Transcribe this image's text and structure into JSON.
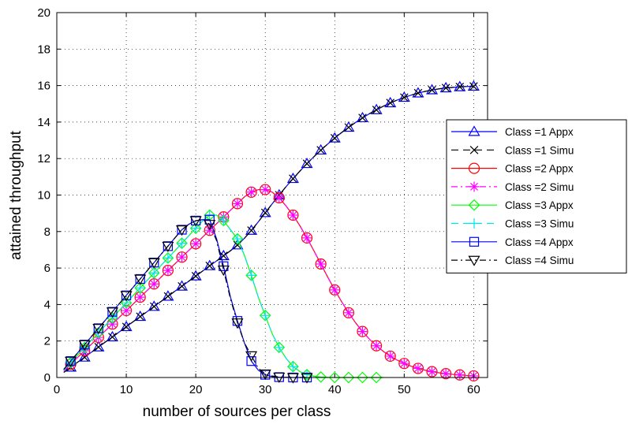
{
  "chart_data": {
    "type": "line",
    "title": "",
    "xlabel": "number of sources per class",
    "ylabel": "attained throughput",
    "xlim": [
      0,
      62
    ],
    "ylim": [
      0,
      20
    ],
    "xticks": [
      0,
      10,
      20,
      30,
      40,
      50,
      60
    ],
    "yticks": [
      0,
      2,
      4,
      6,
      8,
      10,
      12,
      14,
      16,
      18,
      20
    ],
    "grid": true,
    "grid_style": "dotted",
    "legend_position": "outside-right",
    "series": [
      {
        "name": "Class =1 Appx",
        "color": "#0000ff",
        "line": "solid",
        "marker": "triangle-up",
        "x": [
          1,
          2,
          3,
          4,
          5,
          6,
          7,
          8,
          9,
          10,
          11,
          12,
          13,
          14,
          15,
          16,
          17,
          18,
          19,
          20,
          21,
          22,
          23,
          24,
          25,
          26,
          27,
          28,
          29,
          30,
          31,
          32,
          33,
          34,
          35,
          36,
          37,
          38,
          39,
          40,
          41,
          42,
          43,
          44,
          45,
          46,
          47,
          48,
          49,
          50,
          51,
          52,
          53,
          54,
          55,
          56,
          57,
          58,
          59,
          60
        ],
        "y": [
          0.28,
          0.56,
          0.84,
          1.11,
          1.39,
          1.67,
          1.95,
          2.22,
          2.5,
          2.78,
          3.06,
          3.34,
          3.61,
          3.89,
          4.17,
          4.45,
          4.73,
          5.0,
          5.28,
          5.56,
          5.84,
          6.12,
          6.39,
          6.67,
          6.95,
          7.26,
          7.63,
          8.06,
          8.53,
          9.03,
          9.52,
          10.0,
          10.46,
          10.9,
          11.32,
          11.72,
          12.1,
          12.46,
          12.8,
          13.12,
          13.43,
          13.71,
          13.98,
          14.23,
          14.46,
          14.67,
          14.87,
          15.05,
          15.21,
          15.35,
          15.48,
          15.59,
          15.68,
          15.76,
          15.82,
          15.87,
          15.9,
          15.93,
          15.95,
          15.96
        ]
      },
      {
        "name": "Class =1 Simu",
        "color": "#000000",
        "line": "dashed",
        "marker": "x",
        "x": [
          1,
          2,
          3,
          4,
          5,
          6,
          7,
          8,
          9,
          10,
          11,
          12,
          13,
          14,
          15,
          16,
          17,
          18,
          19,
          20,
          21,
          22,
          23,
          24,
          25,
          26,
          27,
          28,
          29,
          30,
          31,
          32,
          33,
          34,
          35,
          36,
          37,
          38,
          39,
          40,
          41,
          42,
          43,
          44,
          45,
          46,
          47,
          48,
          49,
          50,
          51,
          52,
          53,
          54,
          55,
          56,
          57,
          58,
          59,
          60
        ],
        "y": [
          0.28,
          0.56,
          0.84,
          1.11,
          1.39,
          1.67,
          1.95,
          2.22,
          2.5,
          2.78,
          3.06,
          3.34,
          3.61,
          3.89,
          4.17,
          4.45,
          4.73,
          5.0,
          5.28,
          5.56,
          5.84,
          6.12,
          6.39,
          6.67,
          6.95,
          7.26,
          7.63,
          8.06,
          8.53,
          9.03,
          9.52,
          10.0,
          10.46,
          10.9,
          11.32,
          11.72,
          12.1,
          12.46,
          12.8,
          13.12,
          13.43,
          13.71,
          13.98,
          14.23,
          14.46,
          14.67,
          14.87,
          15.05,
          15.21,
          15.35,
          15.48,
          15.59,
          15.68,
          15.76,
          15.82,
          15.87,
          15.9,
          15.93,
          15.95,
          15.96
        ]
      },
      {
        "name": "Class =2 Appx",
        "color": "#ff0000",
        "line": "solid",
        "marker": "circle",
        "x": [
          1,
          2,
          3,
          4,
          5,
          6,
          7,
          8,
          9,
          10,
          11,
          12,
          13,
          14,
          15,
          16,
          17,
          18,
          19,
          20,
          21,
          22,
          23,
          24,
          25,
          26,
          27,
          28,
          29,
          30,
          31,
          32,
          33,
          34,
          35,
          36,
          37,
          38,
          39,
          40,
          41,
          42,
          43,
          44,
          45,
          46,
          47,
          48,
          49,
          50,
          51,
          52,
          53,
          54,
          55,
          56,
          57,
          58,
          59,
          60
        ],
        "y": [
          0.37,
          0.73,
          1.1,
          1.47,
          1.83,
          2.2,
          2.57,
          2.93,
          3.3,
          3.67,
          4.03,
          4.4,
          4.77,
          5.13,
          5.5,
          5.87,
          6.23,
          6.6,
          6.97,
          7.33,
          7.7,
          8.07,
          8.43,
          8.8,
          9.17,
          9.53,
          9.9,
          10.16,
          10.3,
          10.3,
          10.16,
          9.85,
          9.4,
          8.9,
          8.31,
          7.65,
          6.95,
          6.22,
          5.5,
          4.8,
          4.15,
          3.55,
          3.0,
          2.52,
          2.1,
          1.74,
          1.43,
          1.17,
          0.95,
          0.77,
          0.62,
          0.5,
          0.4,
          0.32,
          0.26,
          0.21,
          0.17,
          0.14,
          0.11,
          0.09
        ]
      },
      {
        "name": "Class =2 Simu",
        "color": "#ff00ff",
        "line": "dashdot",
        "marker": "asterisk",
        "x": [
          1,
          2,
          3,
          4,
          5,
          6,
          7,
          8,
          9,
          10,
          11,
          12,
          13,
          14,
          15,
          16,
          17,
          18,
          19,
          20,
          21,
          22,
          23,
          24,
          25,
          26,
          27,
          28,
          29,
          30,
          31,
          32,
          33,
          34,
          35,
          36,
          37,
          38,
          39,
          40,
          41,
          42,
          43,
          44,
          45,
          46,
          47,
          48,
          49,
          50,
          51,
          52,
          53,
          54,
          55,
          56,
          57,
          58,
          59,
          60
        ],
        "y": [
          0.37,
          0.73,
          1.1,
          1.47,
          1.83,
          2.2,
          2.57,
          2.93,
          3.3,
          3.67,
          4.03,
          4.4,
          4.77,
          5.13,
          5.5,
          5.87,
          6.23,
          6.6,
          6.97,
          7.33,
          7.7,
          8.07,
          8.43,
          8.8,
          9.17,
          9.53,
          9.9,
          10.16,
          10.3,
          10.3,
          10.16,
          9.85,
          9.4,
          8.9,
          8.31,
          7.65,
          6.95,
          6.22,
          5.5,
          4.8,
          4.15,
          3.55,
          3.0,
          2.52,
          2.1,
          1.74,
          1.43,
          1.17,
          0.95,
          0.77,
          0.62,
          0.5,
          0.4,
          0.32,
          0.26,
          0.21,
          0.17,
          0.14,
          0.11,
          0.09
        ]
      },
      {
        "name": "Class =3 Appx",
        "color": "#00ff00",
        "line": "solid",
        "marker": "diamond",
        "x": [
          1,
          2,
          3,
          4,
          5,
          6,
          7,
          8,
          9,
          10,
          11,
          12,
          13,
          14,
          15,
          16,
          17,
          18,
          19,
          20,
          21,
          22,
          23,
          24,
          25,
          26,
          27,
          28,
          29,
          30,
          31,
          32,
          33,
          34,
          35,
          36,
          37,
          38,
          39,
          40,
          41,
          42,
          43,
          44,
          45,
          46,
          47
        ],
        "y": [
          0.41,
          0.82,
          1.23,
          1.64,
          2.05,
          2.45,
          2.86,
          3.27,
          3.68,
          4.09,
          4.5,
          4.91,
          5.32,
          5.73,
          6.14,
          6.55,
          6.95,
          7.36,
          7.77,
          8.18,
          8.59,
          8.9,
          8.9,
          8.6,
          8.1,
          7.6,
          6.7,
          5.6,
          4.4,
          3.4,
          2.4,
          1.65,
          1.05,
          0.6,
          0.32,
          0.16,
          0.07,
          0.03,
          0.01,
          0.0,
          0.0,
          0.0,
          0.0,
          0.0,
          0.0,
          0.0,
          0.0
        ]
      },
      {
        "name": "Class =3 Simu",
        "color": "#00e5e5",
        "line": "dashed",
        "marker": "plus",
        "x": [
          1,
          2,
          3,
          4,
          5,
          6,
          7,
          8,
          9,
          10,
          11,
          12,
          13,
          14,
          15,
          16,
          17,
          18,
          19,
          20,
          21,
          22,
          23,
          24,
          25,
          26,
          27,
          28,
          29,
          30,
          31,
          32,
          33,
          34,
          35,
          36
        ],
        "y": [
          0.41,
          0.82,
          1.23,
          1.64,
          2.05,
          2.45,
          2.86,
          3.27,
          3.68,
          4.09,
          4.5,
          4.91,
          5.32,
          5.73,
          6.14,
          6.55,
          6.95,
          7.36,
          7.77,
          8.18,
          8.59,
          8.9,
          8.9,
          8.6,
          8.1,
          7.6,
          6.7,
          5.6,
          4.4,
          3.4,
          2.4,
          1.65,
          1.05,
          0.6,
          0.32,
          0.16
        ]
      },
      {
        "name": "Class =4 Appx",
        "color": "#0000ff",
        "line": "solid",
        "marker": "square",
        "x": [
          1,
          2,
          3,
          4,
          5,
          6,
          7,
          8,
          9,
          10,
          11,
          12,
          13,
          14,
          15,
          16,
          17,
          18,
          19,
          20,
          21,
          22,
          23,
          24,
          25,
          26,
          27,
          28,
          29,
          30,
          31,
          32,
          33,
          34,
          35,
          36
        ],
        "y": [
          0.45,
          0.9,
          1.35,
          1.8,
          2.25,
          2.7,
          3.15,
          3.6,
          4.05,
          4.5,
          4.95,
          5.4,
          5.85,
          6.3,
          6.75,
          7.2,
          7.65,
          8.1,
          8.4,
          8.6,
          8.65,
          8.65,
          7.6,
          6.1,
          4.4,
          3.1,
          1.9,
          0.9,
          0.4,
          0.15,
          0.05,
          0.02,
          0.01,
          0.0,
          0.0,
          0.0
        ]
      },
      {
        "name": "Class =4 Simu",
        "color": "#000000",
        "line": "dashdot",
        "marker": "triangle-down",
        "x": [
          1,
          2,
          3,
          4,
          5,
          6,
          7,
          8,
          9,
          10,
          11,
          12,
          13,
          14,
          15,
          16,
          17,
          18,
          19,
          20,
          21,
          22,
          23,
          24,
          25,
          26,
          27,
          28,
          29,
          30,
          31,
          32,
          33,
          34,
          35,
          36
        ],
        "y": [
          0.45,
          0.9,
          1.35,
          1.8,
          2.25,
          2.7,
          3.15,
          3.6,
          4.05,
          4.5,
          4.95,
          5.4,
          5.85,
          6.3,
          6.75,
          7.2,
          7.65,
          8.1,
          8.4,
          8.6,
          8.65,
          8.4,
          7.5,
          5.9,
          4.3,
          3.0,
          1.9,
          1.2,
          0.5,
          0.2,
          0.08,
          0.03,
          0.01,
          0.0,
          0.0,
          0.0
        ]
      }
    ]
  }
}
